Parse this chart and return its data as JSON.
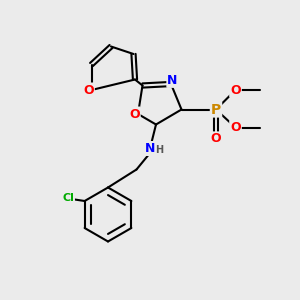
{
  "bg_color": "#ebebeb",
  "atom_colors": {
    "O": "#ff0000",
    "N": "#0000ff",
    "P": "#cc8800",
    "Cl": "#00aa00",
    "C": "#000000",
    "H": "#555555"
  },
  "bond_color": "#000000",
  "bond_width": 1.5
}
